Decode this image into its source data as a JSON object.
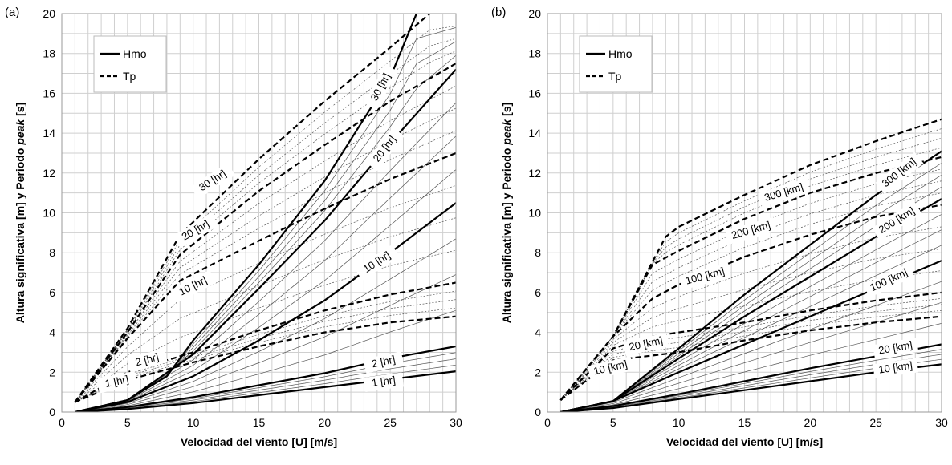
{
  "chart_data": [
    {
      "panel": "(a)",
      "type": "line",
      "xlabel": "Velocidad del viento [U] [m/s]",
      "ylabel_prefix": "Altura significativa [m] y Periodo ",
      "ylabel_italic": "peak",
      "ylabel_suffix": " [s]",
      "xlim": [
        0,
        30
      ],
      "ylim": [
        0,
        20
      ],
      "xticks": [
        0,
        5,
        10,
        15,
        20,
        25,
        30
      ],
      "yticks": [
        0,
        2,
        4,
        6,
        8,
        10,
        12,
        14,
        16,
        18,
        20
      ],
      "grid": true,
      "legend": {
        "position": "top-left",
        "entries": [
          {
            "label": "Hmo",
            "style": "solid"
          },
          {
            "label": "Tp",
            "style": "dashed"
          }
        ]
      },
      "curve_labels": [
        {
          "text": "1 [hr]",
          "series": "Tp",
          "x": 4.2,
          "y": 1.5,
          "angle": -12
        },
        {
          "text": "2 [hr]",
          "series": "Tp",
          "x": 6.5,
          "y": 2.6,
          "angle": -15
        },
        {
          "text": "10 [hr]",
          "series": "Tp",
          "x": 10.0,
          "y": 6.3,
          "angle": -27
        },
        {
          "text": "20 [hr]",
          "series": "Tp",
          "x": 10.2,
          "y": 9.1,
          "angle": -30
        },
        {
          "text": "30 [hr]",
          "series": "Tp",
          "x": 11.5,
          "y": 11.6,
          "angle": -33
        },
        {
          "text": "1 [hr]",
          "series": "Hmo",
          "x": 24.5,
          "y": 1.5,
          "angle": -8
        },
        {
          "text": "2 [hr]",
          "series": "Hmo",
          "x": 24.5,
          "y": 2.5,
          "angle": -12
        },
        {
          "text": "10 [hr]",
          "series": "Hmo",
          "x": 24.0,
          "y": 7.5,
          "angle": -33
        },
        {
          "text": "20 [hr]",
          "series": "Hmo",
          "x": 24.6,
          "y": 13.2,
          "angle": -52
        },
        {
          "text": "30 [hr]",
          "series": "Hmo",
          "x": 24.3,
          "y": 16.3,
          "angle": -62
        }
      ],
      "series": [
        {
          "type": "Hmo",
          "emphasis": true,
          "x": [
            1,
            5,
            10,
            15,
            20,
            25,
            30
          ],
          "values": [
            0.0,
            0.15,
            0.45,
            0.85,
            1.25,
            1.65,
            2.05
          ]
        },
        {
          "type": "Hmo",
          "emphasis": true,
          "x": [
            1,
            5,
            10,
            15,
            20,
            25,
            30
          ],
          "values": [
            0.0,
            0.25,
            0.75,
            1.35,
            1.95,
            2.7,
            3.3
          ]
        },
        {
          "type": "Hmo",
          "emphasis": true,
          "x": [
            1,
            5,
            10,
            15,
            20,
            25,
            30
          ],
          "values": [
            0.0,
            0.5,
            1.8,
            3.6,
            5.6,
            8.0,
            10.5
          ]
        },
        {
          "type": "Hmo",
          "emphasis": true,
          "x": [
            1,
            5,
            10,
            15,
            20,
            25,
            30
          ],
          "values": [
            0.0,
            0.6,
            2.9,
            6.2,
            9.6,
            13.5,
            17.2
          ]
        },
        {
          "type": "Hmo",
          "emphasis": true,
          "x": [
            1,
            5,
            8,
            10,
            15,
            20,
            25,
            27
          ],
          "values": [
            0.0,
            0.6,
            1.8,
            3.6,
            7.4,
            11.6,
            16.8,
            20.0
          ]
        },
        {
          "type": "Tp",
          "emphasis": true,
          "x": [
            1,
            5,
            10,
            15,
            20,
            25,
            30
          ],
          "values": [
            0.5,
            1.6,
            2.5,
            3.3,
            4.0,
            4.5,
            4.8
          ]
        },
        {
          "type": "Tp",
          "emphasis": true,
          "x": [
            1,
            5,
            10,
            15,
            20,
            25,
            30
          ],
          "values": [
            0.5,
            2.0,
            3.0,
            4.1,
            5.1,
            5.9,
            6.5
          ]
        },
        {
          "type": "Tp",
          "emphasis": true,
          "x": [
            1,
            5,
            9,
            15,
            20,
            25,
            30
          ],
          "values": [
            0.5,
            3.7,
            6.6,
            8.6,
            10.2,
            11.7,
            13.0
          ]
        },
        {
          "type": "Tp",
          "emphasis": true,
          "x": [
            1,
            5,
            9,
            15,
            20,
            25,
            30
          ],
          "values": [
            0.5,
            4.0,
            7.9,
            11.1,
            13.4,
            15.6,
            17.5
          ]
        },
        {
          "type": "Tp",
          "emphasis": true,
          "x": [
            1,
            5,
            9,
            15,
            20,
            25,
            28
          ],
          "values": [
            0.5,
            4.2,
            8.9,
            12.7,
            15.6,
            18.3,
            20.0
          ]
        }
      ]
    },
    {
      "panel": "(b)",
      "type": "line",
      "xlabel": "Velocidad del viento [U] [m/s]",
      "ylabel_prefix": "Altura significativa [m] y Periodo ",
      "ylabel_italic": "peak",
      "ylabel_suffix": " [s]",
      "xlim": [
        0,
        30
      ],
      "ylim": [
        0,
        20
      ],
      "xticks": [
        0,
        5,
        10,
        15,
        20,
        25,
        30
      ],
      "yticks": [
        0,
        2,
        4,
        6,
        8,
        10,
        12,
        14,
        16,
        18,
        20
      ],
      "grid": true,
      "legend": {
        "position": "top-left",
        "entries": [
          {
            "label": "Hmo",
            "style": "solid"
          },
          {
            "label": "Tp",
            "style": "dashed"
          }
        ]
      },
      "curve_labels": [
        {
          "text": "10 [km]",
          "series": "Tp",
          "x": 4.8,
          "y": 2.2,
          "angle": -13
        },
        {
          "text": "20 [km]",
          "series": "Tp",
          "x": 7.5,
          "y": 3.4,
          "angle": -12
        },
        {
          "text": "100 [km]",
          "series": "Tp",
          "x": 12.0,
          "y": 6.8,
          "angle": -15
        },
        {
          "text": "200 [km]",
          "series": "Tp",
          "x": 15.5,
          "y": 9.1,
          "angle": -16
        },
        {
          "text": "300 [km]",
          "series": "Tp",
          "x": 18.0,
          "y": 11.0,
          "angle": -17
        },
        {
          "text": "10 [km]",
          "series": "Hmo",
          "x": 26.5,
          "y": 2.2,
          "angle": -8
        },
        {
          "text": "20 [km]",
          "series": "Hmo",
          "x": 26.5,
          "y": 3.2,
          "angle": -10
        },
        {
          "text": "100 [km]",
          "series": "Hmo",
          "x": 26.0,
          "y": 6.6,
          "angle": -25
        },
        {
          "text": "200 [km]",
          "series": "Hmo",
          "x": 26.6,
          "y": 9.6,
          "angle": -32
        },
        {
          "text": "300 [km]",
          "series": "Hmo",
          "x": 26.8,
          "y": 12.0,
          "angle": -38
        }
      ],
      "series": [
        {
          "type": "Hmo",
          "emphasis": true,
          "x": [
            1,
            5,
            10,
            15,
            20,
            25,
            30
          ],
          "values": [
            0.0,
            0.2,
            0.65,
            1.1,
            1.55,
            2.0,
            2.4
          ]
        },
        {
          "type": "Hmo",
          "emphasis": true,
          "x": [
            1,
            5,
            10,
            15,
            20,
            25,
            30
          ],
          "values": [
            0.0,
            0.3,
            0.9,
            1.55,
            2.2,
            2.8,
            3.4
          ]
        },
        {
          "type": "Hmo",
          "emphasis": true,
          "x": [
            1,
            5,
            10,
            15,
            20,
            25,
            30
          ],
          "values": [
            0.0,
            0.55,
            2.0,
            3.4,
            4.8,
            6.2,
            7.6
          ]
        },
        {
          "type": "Hmo",
          "emphasis": true,
          "x": [
            1,
            5,
            10,
            15,
            20,
            25,
            30
          ],
          "values": [
            0.0,
            0.55,
            2.7,
            4.8,
            6.8,
            8.8,
            10.7
          ]
        },
        {
          "type": "Hmo",
          "emphasis": true,
          "x": [
            1,
            5,
            10,
            15,
            20,
            25,
            30
          ],
          "values": [
            0.0,
            0.55,
            3.2,
            5.9,
            8.4,
            10.9,
            13.1
          ]
        },
        {
          "type": "Tp",
          "emphasis": true,
          "x": [
            1,
            3,
            5,
            10,
            15,
            20,
            25,
            30
          ],
          "values": [
            0.6,
            1.6,
            2.6,
            3.0,
            3.6,
            4.1,
            4.5,
            4.8
          ]
        },
        {
          "type": "Tp",
          "emphasis": true,
          "x": [
            1,
            3,
            5,
            8,
            10,
            15,
            20,
            25,
            30
          ],
          "values": [
            0.6,
            1.9,
            3.2,
            3.8,
            4.0,
            4.5,
            5.1,
            5.6,
            6.0
          ]
        },
        {
          "type": "Tp",
          "emphasis": true,
          "x": [
            1,
            5,
            8,
            10,
            15,
            20,
            25,
            30
          ],
          "values": [
            0.6,
            3.8,
            5.7,
            6.4,
            7.8,
            8.9,
            9.8,
            10.4
          ]
        },
        {
          "type": "Tp",
          "emphasis": true,
          "x": [
            1,
            5,
            8,
            10,
            15,
            20,
            25,
            30
          ],
          "values": [
            0.6,
            3.8,
            7.4,
            8.1,
            9.7,
            11.0,
            12.0,
            12.8
          ]
        },
        {
          "type": "Tp",
          "emphasis": true,
          "x": [
            1,
            5,
            9,
            10,
            15,
            20,
            25,
            30
          ],
          "values": [
            0.6,
            3.8,
            8.8,
            9.3,
            10.9,
            12.4,
            13.6,
            14.7
          ]
        }
      ]
    }
  ]
}
